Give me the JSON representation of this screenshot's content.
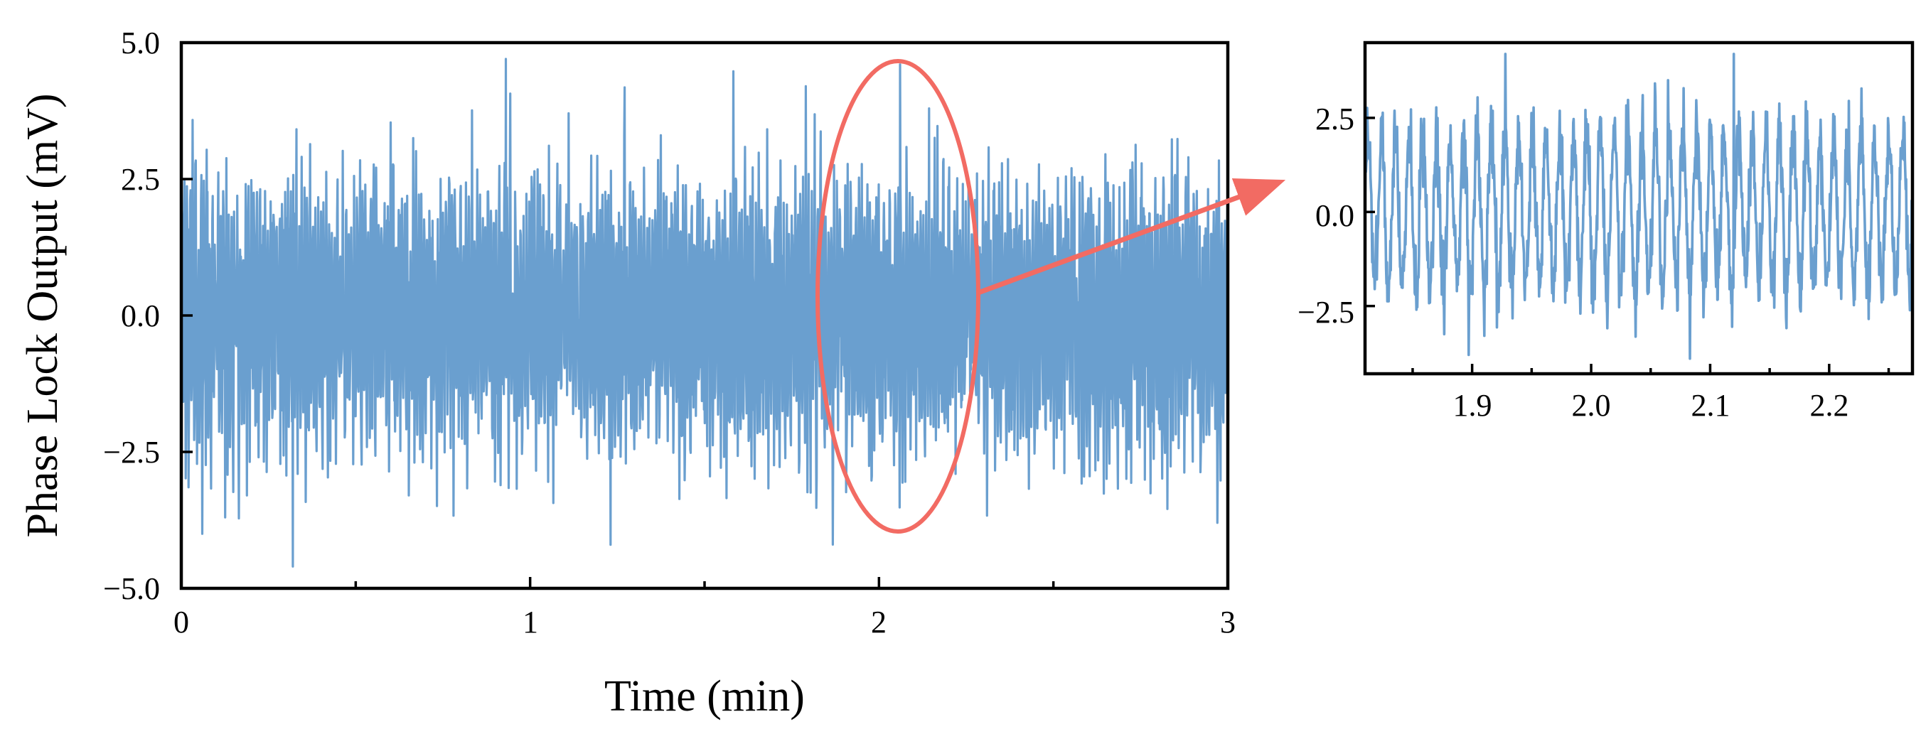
{
  "chart_data": [
    {
      "type": "line",
      "name": "main",
      "xlabel": "Time (min)",
      "ylabel": "Phase Lock Output (mV)",
      "xlim": [
        0,
        3
      ],
      "ylim": [
        -5.0,
        5.0
      ],
      "xticks": [
        0,
        1,
        2,
        3
      ],
      "xtick_labels": [
        "0",
        "1",
        "2",
        "3"
      ],
      "x_minor_ticks": [
        0.5,
        1.5,
        2.5
      ],
      "yticks": [
        -5.0,
        -2.5,
        0.0,
        2.5,
        5.0
      ],
      "ytick_labels": [
        "−5.0",
        "−2.5",
        "0.0",
        "2.5",
        "5.0"
      ],
      "grid": false,
      "series": [
        {
          "color": "#6a9fcf",
          "description": "noisy oscillation about 0 mV, mostly within ±3 mV",
          "peaks": [
            {
              "x": 0.32,
              "y": -4.6
            },
            {
              "x": 0.93,
              "y": 4.7
            },
            {
              "x": 0.06,
              "y": -4.0
            },
            {
              "x": 1.23,
              "y": -4.2
            },
            {
              "x": 2.06,
              "y": 4.6
            },
            {
              "x": 1.79,
              "y": 4.2
            },
            {
              "x": 2.97,
              "y": -3.8
            }
          ]
        }
      ],
      "highlight": {
        "shape": "ellipse",
        "color": "#f26b63",
        "x_range": [
          1.84,
          2.28
        ],
        "y_range": [
          -4.0,
          4.6
        ]
      }
    },
    {
      "type": "line",
      "name": "inset-zoom",
      "xlim": [
        1.81,
        2.27
      ],
      "ylim": [
        -4.3,
        4.5
      ],
      "xticks": [
        1.9,
        2.0,
        2.1,
        2.2
      ],
      "xtick_labels": [
        "1.9",
        "2.0",
        "2.1",
        "2.2"
      ],
      "x_minor_ticks": [
        1.85,
        1.95,
        2.05,
        2.15,
        2.25
      ],
      "yticks": [
        -2.5,
        0.0,
        2.5
      ],
      "ytick_labels": [
        "−2.5",
        "0.0",
        "2.5"
      ],
      "grid": false,
      "series": [
        {
          "color": "#6a9fcf",
          "description": "zoomed oscillation, roughly 40 cycles over the window, peaks near ±3.5 mV",
          "peaks": [
            {
              "x": 1.928,
              "y": 4.2
            },
            {
              "x": 2.12,
              "y": 4.2
            },
            {
              "x": 1.897,
              "y": -3.8
            },
            {
              "x": 2.083,
              "y": -3.9
            }
          ]
        }
      ]
    }
  ]
}
